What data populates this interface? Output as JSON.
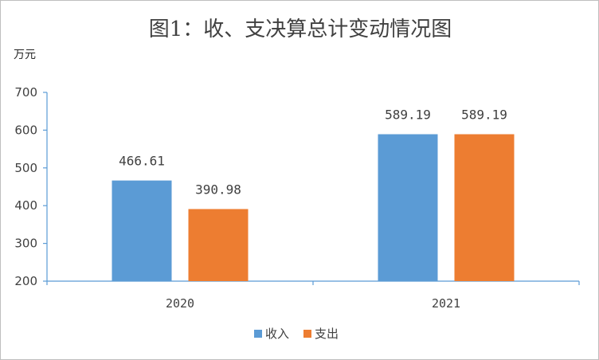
{
  "chart_data": {
    "type": "bar",
    "title": "图1：收、支决算总计变动情况图",
    "ylabel": "万元",
    "xlabel": "",
    "categories": [
      "2020",
      "2021"
    ],
    "series": [
      {
        "name": "收入",
        "values": [
          466.61,
          589.19
        ],
        "color": "#5b9bd5"
      },
      {
        "name": "支出",
        "values": [
          390.98,
          589.19
        ],
        "color": "#ed7d31"
      }
    ],
    "data_labels": [
      [
        "466.61",
        "589.19"
      ],
      [
        "390.98",
        "589.19"
      ]
    ],
    "ylim": [
      200,
      700
    ],
    "yticks": [
      200,
      300,
      400,
      500,
      600,
      700
    ],
    "grid": false,
    "legend_position": "bottom",
    "axis_color": "#5b9bd5"
  }
}
